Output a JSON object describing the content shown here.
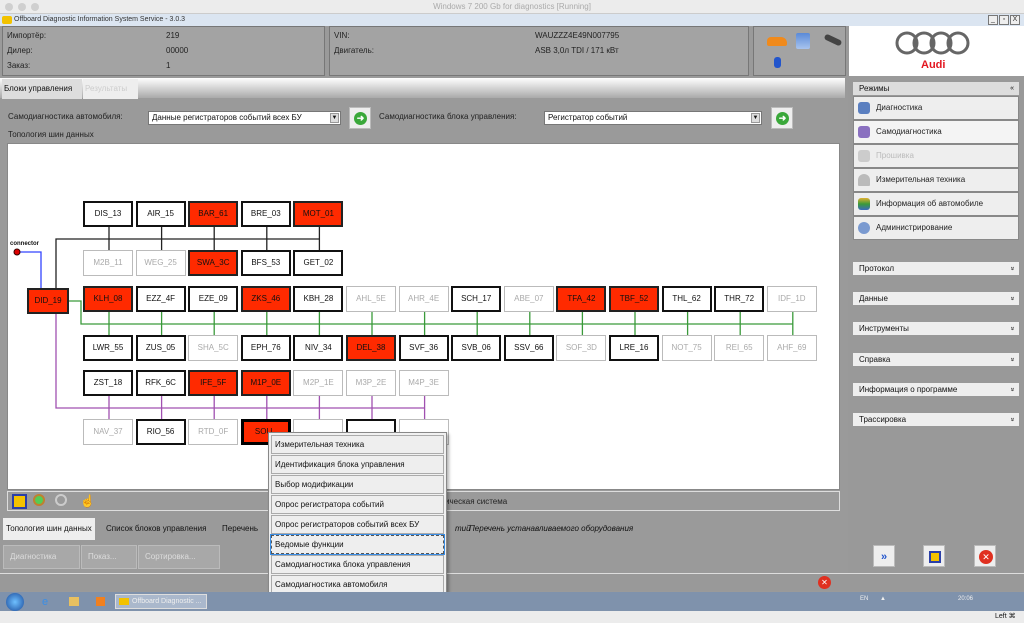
{
  "host_title": "Windows 7 200 Gb for diagnostics [Running]",
  "app_title": "Offboard Diagnostic Information System Service - 3.0.3",
  "window_buttons": [
    "_",
    "▫",
    "X"
  ],
  "info": {
    "importer_label": "Импортёр:",
    "importer_value": "219",
    "dealer_label": "Дилер:",
    "dealer_value": "00000",
    "order_label": "Заказ:",
    "order_value": "1",
    "vin_label": "VIN:",
    "vin_value": "WAUZZZ4E49N007795",
    "engine_label": "Двигатель:",
    "engine_value": "ASB 3,0л TDI / 171 кВт"
  },
  "status_icons": [
    "car-icon",
    "network-icon",
    "key-icon",
    "bluetooth-icon"
  ],
  "brand": {
    "name": "Audi",
    "color": "#e3161f"
  },
  "tabs": [
    {
      "label": "Блоки управления",
      "active": true
    },
    {
      "label": "Результаты",
      "active": false
    }
  ],
  "controls": {
    "vehicle_selfdiag_label": "Самодиагностика автомобиля:",
    "vehicle_selfdiag_value": "Данные регистраторов событий всех БУ",
    "ecu_selfdiag_label": "Самодиагностика блока управления:",
    "ecu_selfdiag_value": "Регистратор событий",
    "topology_label": "Топология шин данных"
  },
  "topology": {
    "connector_label": "connector",
    "gateway": {
      "label": "DID_19",
      "state": "r"
    },
    "colors": {
      "red": "#ff2a00",
      "black_bus": "#222222",
      "green_bus": "#3a9a3a",
      "purple_bus": "#a050b0",
      "connector": "#3344ff"
    },
    "rows": [
      [
        {
          "label": "DIS_13",
          "state": "n"
        },
        {
          "label": "AIR_15",
          "state": "n"
        },
        {
          "label": "BAR_61",
          "state": "r"
        },
        {
          "label": "BRE_03",
          "state": "n"
        },
        {
          "label": "MOT_01",
          "state": "r"
        }
      ],
      [
        {
          "label": "M2B_11",
          "state": "d"
        },
        {
          "label": "WEG_25",
          "state": "d"
        },
        {
          "label": "SWA_3C",
          "state": "r"
        },
        {
          "label": "BFS_53",
          "state": "n"
        },
        {
          "label": "GET_02",
          "state": "n"
        }
      ],
      [
        {
          "label": "KLH_08",
          "state": "r"
        },
        {
          "label": "EZZ_4F",
          "state": "n"
        },
        {
          "label": "EZE_09",
          "state": "n"
        },
        {
          "label": "ZKS_46",
          "state": "r"
        },
        {
          "label": "KBH_28",
          "state": "n"
        },
        {
          "label": "AHL_5E",
          "state": "d"
        },
        {
          "label": "AHR_4E",
          "state": "d"
        },
        {
          "label": "SCH_17",
          "state": "n"
        },
        {
          "label": "ABE_07",
          "state": "d"
        },
        {
          "label": "TFA_42",
          "state": "r"
        },
        {
          "label": "TBF_52",
          "state": "r"
        },
        {
          "label": "THL_62",
          "state": "n"
        },
        {
          "label": "THR_72",
          "state": "n"
        },
        {
          "label": "IDF_1D",
          "state": "d"
        }
      ],
      [
        {
          "label": "LWR_55",
          "state": "n"
        },
        {
          "label": "ZUS_05",
          "state": "n"
        },
        {
          "label": "SHA_5C",
          "state": "d"
        },
        {
          "label": "EPH_76",
          "state": "n"
        },
        {
          "label": "NIV_34",
          "state": "n"
        },
        {
          "label": "DEL_38",
          "state": "r"
        },
        {
          "label": "SVF_36",
          "state": "n"
        },
        {
          "label": "SVB_06",
          "state": "n"
        },
        {
          "label": "SSV_66",
          "state": "n"
        },
        {
          "label": "SOF_3D",
          "state": "d"
        },
        {
          "label": "LRE_16",
          "state": "n"
        },
        {
          "label": "NOT_75",
          "state": "d"
        },
        {
          "label": "REI_65",
          "state": "d"
        },
        {
          "label": "AHF_69",
          "state": "d"
        }
      ],
      [
        {
          "label": "ZST_18",
          "state": "n"
        },
        {
          "label": "RFK_6C",
          "state": "n"
        },
        {
          "label": "IFE_5F",
          "state": "r"
        },
        {
          "label": "M1P_0E",
          "state": "r"
        },
        {
          "label": "M2P_1E",
          "state": "d"
        },
        {
          "label": "M3P_2E",
          "state": "d"
        },
        {
          "label": "M4P_3E",
          "state": "d"
        }
      ],
      [
        {
          "label": "NAV_37",
          "state": "d"
        },
        {
          "label": "RIO_56",
          "state": "n"
        },
        {
          "label": "RTD_0F",
          "state": "d"
        },
        {
          "label": "SOU_",
          "state": "r sel"
        },
        {
          "label": "",
          "state": "d"
        },
        {
          "label": "",
          "state": "n"
        },
        {
          "label": "",
          "state": "d"
        }
      ]
    ]
  },
  "context_menu": [
    "Измерительная техника",
    "Идентификация блока управления",
    "Выбор модификации",
    "Опрос регистратора событий",
    "Опрос регистраторов событий всех БУ",
    "Ведомые функции",
    "Самодиагностика блока управления",
    "Самодиагностика автомобиля"
  ],
  "context_menu_focused": 5,
  "canvas_tools": [
    "fit-icon",
    "zoom-in-icon",
    "zoom-out-icon",
    "pan-hand-icon"
  ],
  "footer_status": "ическая система",
  "bottom_tabs": [
    "Топология шин данных",
    "Список блоков управления",
    "Перечень",
    "тий",
    "Перечень устанавливаемого оборудования"
  ],
  "bottom_buttons": [
    "Диагностика",
    "Показ...",
    "Сортировка..."
  ],
  "right_panel": {
    "modes_header": "Режимы",
    "modes": [
      {
        "label": "Диагностика",
        "enabled": true
      },
      {
        "label": "Самодиагностика",
        "enabled": true,
        "active": true
      },
      {
        "label": "Прошивка",
        "enabled": false
      },
      {
        "label": "Измерительная техника",
        "enabled": true
      },
      {
        "label": "Информация об автомобиле",
        "enabled": true
      },
      {
        "label": "Администрирование",
        "enabled": true
      }
    ],
    "sections": [
      "Протокол",
      "Данные",
      "Инструменты",
      "Справка",
      "Информация о программе",
      "Трассировка"
    ]
  },
  "taskbar": {
    "task_label": "Offboard Diagnostic ...",
    "lang": "EN",
    "time": "20:06"
  },
  "mac_status": "Left ⌘"
}
